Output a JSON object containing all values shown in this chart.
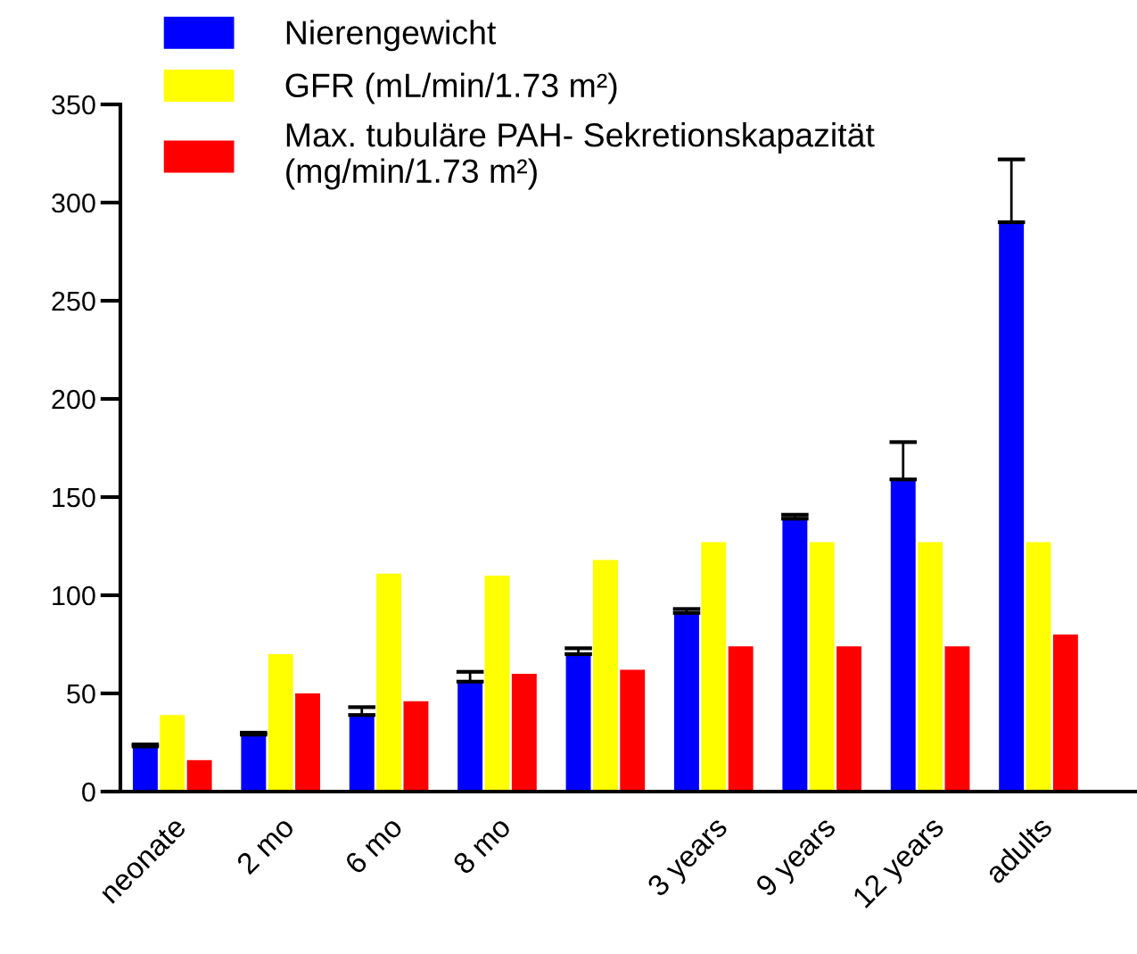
{
  "chart_data": {
    "type": "bar",
    "categories": [
      "neonate",
      "2 mo",
      "6 mo",
      "8 mo",
      null,
      "3 years",
      "9 years",
      "12 years",
      "adults"
    ],
    "series": [
      {
        "name": "Nierengewicht",
        "color": "#0000ff",
        "values": [
          23,
          29,
          39,
          56,
          70,
          91,
          139,
          159,
          290
        ],
        "errors": [
          [
            23,
            24
          ],
          [
            29,
            30
          ],
          [
            39,
            43
          ],
          [
            56,
            61
          ],
          [
            70,
            73
          ],
          [
            91,
            93
          ],
          [
            139,
            141
          ],
          [
            159,
            178
          ],
          [
            290,
            322
          ]
        ]
      },
      {
        "name": "GFR (mL/min/1.73 m²)",
        "color": "#ffff00",
        "values": [
          39,
          70,
          111,
          110,
          118,
          127,
          127,
          127,
          127
        ]
      },
      {
        "name": "Max. tubuläre PAH- Sekretionskapazität\n(mg/min/1.73 m²)",
        "color": "#ff0000",
        "values": [
          16,
          50,
          46,
          60,
          62,
          74,
          74,
          74,
          80
        ]
      }
    ],
    "ylim": [
      0,
      350
    ],
    "yticks": [
      0,
      50,
      100,
      150,
      200,
      250,
      300,
      350
    ],
    "grid": false,
    "legend": "top left"
  }
}
